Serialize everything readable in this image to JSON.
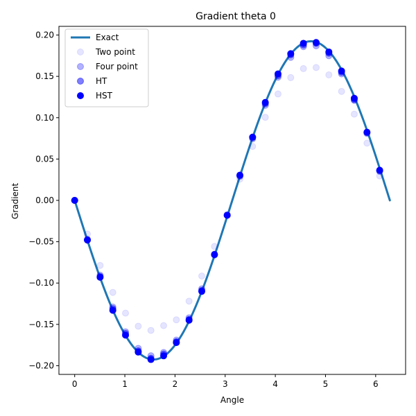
{
  "chart_data": {
    "type": "line",
    "title": "Gradient theta 0",
    "xlabel": "Angle",
    "ylabel": "Gradient",
    "xlim": [
      -0.314,
      6.597
    ],
    "ylim": [
      -0.2105,
      0.2105
    ],
    "xticks": [
      0,
      1,
      2,
      3,
      4,
      5,
      6
    ],
    "xtick_labels": [
      "0",
      "1",
      "2",
      "3",
      "4",
      "5",
      "6"
    ],
    "yticks": [
      -0.2,
      -0.15,
      -0.1,
      -0.05,
      0.0,
      0.05,
      0.1,
      0.15,
      0.2
    ],
    "ytick_labels": [
      "−0.20",
      "−0.15",
      "−0.10",
      "−0.05",
      "0.00",
      "0.05",
      "0.10",
      "0.15",
      "0.20"
    ],
    "grid": false,
    "legend_position": "top-left",
    "x": [
      0.0,
      0.2534,
      0.5067,
      0.7601,
      1.0134,
      1.2668,
      1.5201,
      1.7735,
      2.0268,
      2.2802,
      2.5335,
      2.7869,
      3.0402,
      3.2936,
      3.5469,
      3.8003,
      4.0536,
      4.307,
      4.5603,
      4.8137,
      5.067,
      5.3204,
      5.5737,
      5.8271,
      6.0804
    ],
    "series": [
      {
        "name": "Exact",
        "style": "line",
        "color": "#1f77b4",
        "x_range": [
          0,
          6.2832
        ],
        "amplitude": 0.1925
      },
      {
        "name": "Two point",
        "style": "markers",
        "color": "#0000ff",
        "opacity": 0.1,
        "values": [
          0.0,
          -0.0407,
          -0.0787,
          -0.1113,
          -0.1364,
          -0.1522,
          -0.1573,
          -0.1515,
          -0.1445,
          -0.1219,
          -0.0915,
          -0.0557,
          -0.0167,
          0.0257,
          0.0653,
          0.1005,
          0.1287,
          0.1485,
          0.1594,
          0.1607,
          0.1518,
          0.1318,
          0.1043,
          0.0692,
          0.0296
        ]
      },
      {
        "name": "Four point",
        "style": "markers",
        "color": "#0000ff",
        "opacity": 0.3,
        "values": [
          0.0,
          -0.047,
          -0.0905,
          -0.129,
          -0.159,
          -0.179,
          -0.188,
          -0.184,
          -0.169,
          -0.142,
          -0.107,
          -0.065,
          -0.018,
          0.029,
          0.0745,
          0.115,
          0.149,
          0.173,
          0.186,
          0.187,
          0.175,
          0.153,
          0.121,
          0.081,
          0.035
        ]
      },
      {
        "name": "HT",
        "style": "markers",
        "color": "#0000ff",
        "opacity": 0.5,
        "values": [
          0.0,
          -0.048,
          -0.092,
          -0.131,
          -0.161,
          -0.182,
          -0.191,
          -0.186,
          -0.171,
          -0.144,
          -0.109,
          -0.066,
          -0.018,
          0.03,
          0.076,
          0.117,
          0.151,
          0.176,
          0.188,
          0.19,
          0.178,
          0.155,
          0.122,
          0.082,
          0.036
        ]
      },
      {
        "name": "HST",
        "style": "markers",
        "color": "#0000ff",
        "opacity": 1.0,
        "values": [
          0.0,
          -0.048,
          -0.093,
          -0.133,
          -0.163,
          -0.1835,
          -0.1925,
          -0.188,
          -0.172,
          -0.145,
          -0.11,
          -0.0655,
          -0.018,
          0.0305,
          0.0765,
          0.1185,
          0.153,
          0.1775,
          0.19,
          0.191,
          0.1795,
          0.1565,
          0.1235,
          0.0825,
          0.0365
        ]
      }
    ]
  }
}
